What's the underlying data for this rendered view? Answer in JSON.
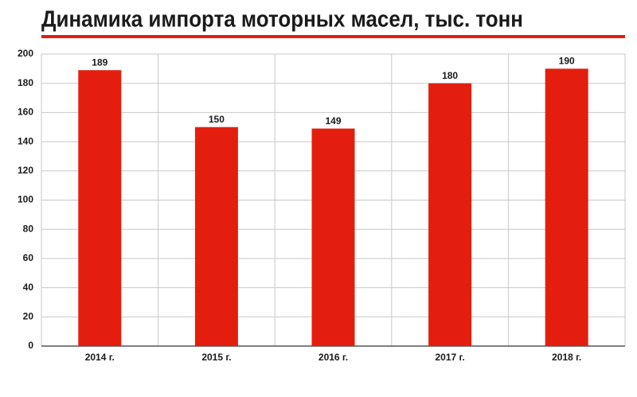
{
  "chart_data": {
    "type": "bar",
    "title": "Динамика импорта моторных масел, тыс. тонн",
    "categories": [
      "2014 г.",
      "2015 г.",
      "2016 г.",
      "2017 г.",
      "2018 г."
    ],
    "values": [
      189,
      150,
      149,
      180,
      190
    ],
    "color": "#e31e0f",
    "ylim": [
      0,
      200
    ],
    "yticks": [
      0,
      20,
      40,
      60,
      80,
      100,
      120,
      140,
      160,
      180,
      200
    ],
    "grid": true
  }
}
